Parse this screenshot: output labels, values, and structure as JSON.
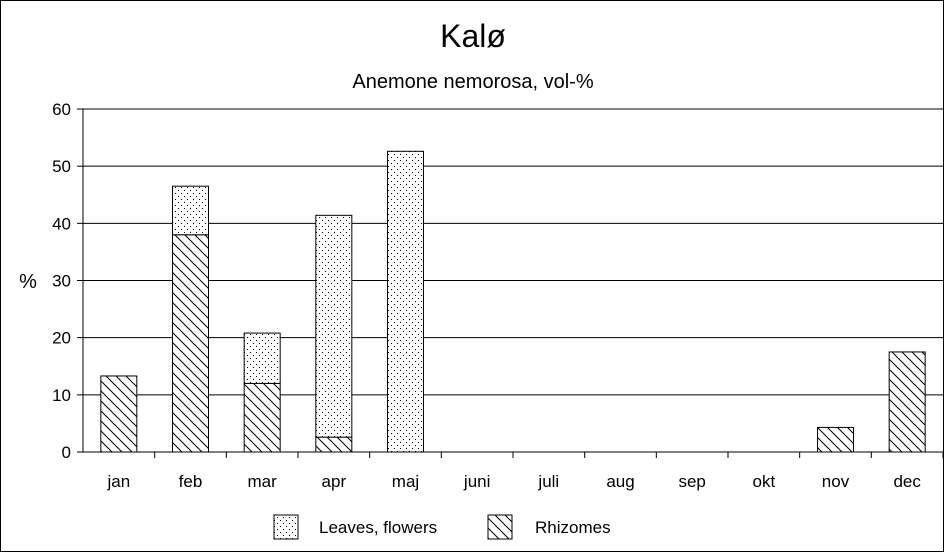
{
  "chart_data": {
    "type": "bar",
    "stacked": true,
    "title": "Kalø",
    "subtitle": "Anemone nemorosa, vol-%",
    "xlabel": "",
    "ylabel": "%",
    "ylim": [
      0,
      60
    ],
    "yticks": [
      0,
      10,
      20,
      30,
      40,
      50,
      60
    ],
    "grid": true,
    "legend_position": "bottom",
    "categories": [
      "jan",
      "feb",
      "mar",
      "apr",
      "maj",
      "juni",
      "juli",
      "aug",
      "sep",
      "okt",
      "nov",
      "dec"
    ],
    "series": [
      {
        "name": "Rhizomes",
        "pattern": "diagonal-hatch",
        "values": [
          13.3,
          38.0,
          12.0,
          2.6,
          0,
          0,
          0,
          0,
          0,
          0,
          4.3,
          17.5
        ]
      },
      {
        "name": "Leaves, flowers",
        "pattern": "dots",
        "values": [
          0,
          8.5,
          8.8,
          38.8,
          52.6,
          0,
          0,
          0,
          0,
          0,
          0,
          0
        ]
      }
    ],
    "legend_order": [
      "Leaves, flowers",
      "Rhizomes"
    ],
    "colors": {
      "fill": "#ffffff",
      "stroke": "#000000",
      "grid": "#000000"
    }
  }
}
